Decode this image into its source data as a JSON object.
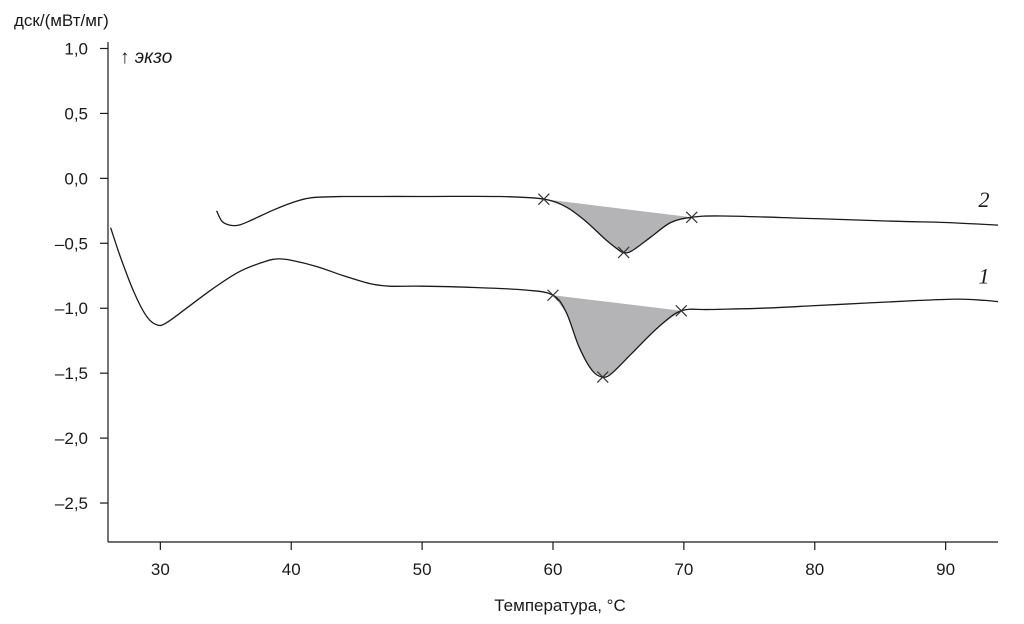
{
  "chart_data": {
    "type": "line",
    "ylabel": "дск/(мВт/мг)",
    "xlabel": "Температура, °С",
    "exo_label": "↑ экзо",
    "xlim": [
      26,
      94
    ],
    "ylim": [
      -2.8,
      1.05
    ],
    "x_ticks": [
      30,
      40,
      50,
      60,
      70,
      80,
      90
    ],
    "x_tick_labels": [
      "30",
      "40",
      "50",
      "60",
      "70",
      "80",
      "90"
    ],
    "y_ticks": [
      1.0,
      0.5,
      0.0,
      -0.5,
      -1.0,
      -1.5,
      -2.0,
      -2.5
    ],
    "y_tick_labels": [
      "1,0",
      "0,5",
      "0,0",
      "–0,5",
      "–1,0",
      "–1,5",
      "–2,0",
      "–2,5"
    ],
    "grid": false,
    "line_color": "#1a1a1a",
    "shade_color": "#b4b4b7",
    "series": [
      {
        "name": "1",
        "points": [
          [
            26.2,
            -0.38
          ],
          [
            27,
            -0.62
          ],
          [
            28,
            -0.88
          ],
          [
            29,
            -1.07
          ],
          [
            29.8,
            -1.13
          ],
          [
            30.5,
            -1.11
          ],
          [
            32,
            -1.0
          ],
          [
            34,
            -0.85
          ],
          [
            36,
            -0.72
          ],
          [
            38,
            -0.64
          ],
          [
            39,
            -0.62
          ],
          [
            40,
            -0.63
          ],
          [
            42,
            -0.68
          ],
          [
            44,
            -0.75
          ],
          [
            46,
            -0.81
          ],
          [
            47.5,
            -0.83
          ],
          [
            50,
            -0.83
          ],
          [
            54,
            -0.84
          ],
          [
            58,
            -0.86
          ],
          [
            60,
            -0.9
          ],
          [
            61,
            -1.03
          ],
          [
            62,
            -1.3
          ],
          [
            63,
            -1.48
          ],
          [
            63.8,
            -1.53
          ],
          [
            64.5,
            -1.5
          ],
          [
            66,
            -1.35
          ],
          [
            68,
            -1.15
          ],
          [
            69.8,
            -1.02
          ],
          [
            72,
            -1.01
          ],
          [
            76,
            -1.0
          ],
          [
            80,
            -0.98
          ],
          [
            84,
            -0.96
          ],
          [
            88,
            -0.94
          ],
          [
            91,
            -0.93
          ],
          [
            93,
            -0.94
          ],
          [
            94,
            -0.95
          ]
        ],
        "peak_markers": [
          [
            60,
            -0.9
          ],
          [
            63.8,
            -1.53
          ],
          [
            69.8,
            -1.02
          ]
        ]
      },
      {
        "name": "2",
        "points": [
          [
            34.3,
            -0.25
          ],
          [
            34.7,
            -0.33
          ],
          [
            35.3,
            -0.36
          ],
          [
            36,
            -0.36
          ],
          [
            37,
            -0.32
          ],
          [
            38.5,
            -0.25
          ],
          [
            40,
            -0.19
          ],
          [
            41.5,
            -0.15
          ],
          [
            44,
            -0.14
          ],
          [
            50,
            -0.14
          ],
          [
            56,
            -0.14
          ],
          [
            59.3,
            -0.16
          ],
          [
            61,
            -0.22
          ],
          [
            62.5,
            -0.33
          ],
          [
            64,
            -0.47
          ],
          [
            65,
            -0.55
          ],
          [
            65.4,
            -0.57
          ],
          [
            66,
            -0.56
          ],
          [
            67.5,
            -0.45
          ],
          [
            69,
            -0.34
          ],
          [
            70.6,
            -0.3
          ],
          [
            73,
            -0.29
          ],
          [
            80,
            -0.31
          ],
          [
            86,
            -0.33
          ],
          [
            90,
            -0.34
          ],
          [
            94,
            -0.36
          ]
        ],
        "peak_markers": [
          [
            59.3,
            -0.16
          ],
          [
            65.4,
            -0.57
          ],
          [
            70.6,
            -0.3
          ]
        ]
      }
    ]
  }
}
